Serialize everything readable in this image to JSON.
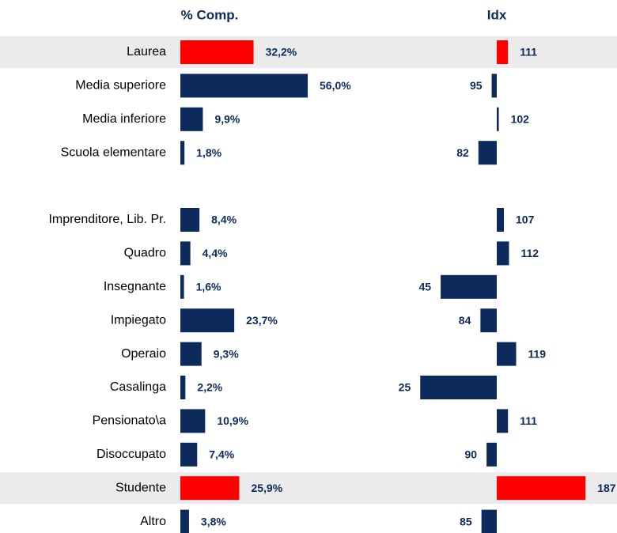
{
  "chart_data": {
    "type": "bar",
    "categories": [
      "Laurea",
      "Media superiore",
      "Media inferiore",
      "Scuola elementare",
      null,
      "Imprenditore, Lib. Pr.",
      "Quadro",
      "Insegnante",
      "Impiegato",
      "Operaio",
      "Casalinga",
      "Pensionato\\a",
      "Disoccupato",
      "Studente",
      "Altro"
    ],
    "row_colors": [
      "#ebebeb",
      null,
      null,
      null,
      null,
      null,
      null,
      null,
      null,
      null,
      null,
      null,
      null,
      "#ebebeb",
      null
    ],
    "series": [
      {
        "name": "% Comp.",
        "values": [
          32.2,
          56.0,
          9.9,
          1.8,
          null,
          8.4,
          4.4,
          1.6,
          23.7,
          9.3,
          2.2,
          10.9,
          7.4,
          25.9,
          3.8
        ],
        "value_labels": [
          "32,2%",
          "56,0%",
          "9,9%",
          "1,8%",
          null,
          "8,4%",
          "4,4%",
          "1,6%",
          "23,7%",
          "9,3%",
          "2,2%",
          "10,9%",
          "7,4%",
          "25,9%",
          "3,8%"
        ],
        "colors": [
          "#ff0000",
          "#0c2a5c",
          "#0c2a5c",
          "#0c2a5c",
          null,
          "#0c2a5c",
          "#0c2a5c",
          "#0c2a5c",
          "#0c2a5c",
          "#0c2a5c",
          "#0c2a5c",
          "#0c2a5c",
          "#0c2a5c",
          "#ff0000",
          "#0c2a5c"
        ],
        "xlim": [
          0,
          60
        ],
        "baseline": 0
      },
      {
        "name": "Idx",
        "values": [
          111,
          95,
          102,
          82,
          null,
          107,
          112,
          45,
          84,
          119,
          25,
          111,
          90,
          187,
          85
        ],
        "colors": [
          "#ff0000",
          "#0c2a5c",
          "#0c2a5c",
          "#0c2a5c",
          null,
          "#0c2a5c",
          "#0c2a5c",
          "#0c2a5c",
          "#0c2a5c",
          "#0c2a5c",
          "#0c2a5c",
          "#0c2a5c",
          "#0c2a5c",
          "#ff0000",
          "#0c2a5c"
        ],
        "xlim": [
          0,
          200
        ],
        "baseline": 100
      }
    ]
  }
}
